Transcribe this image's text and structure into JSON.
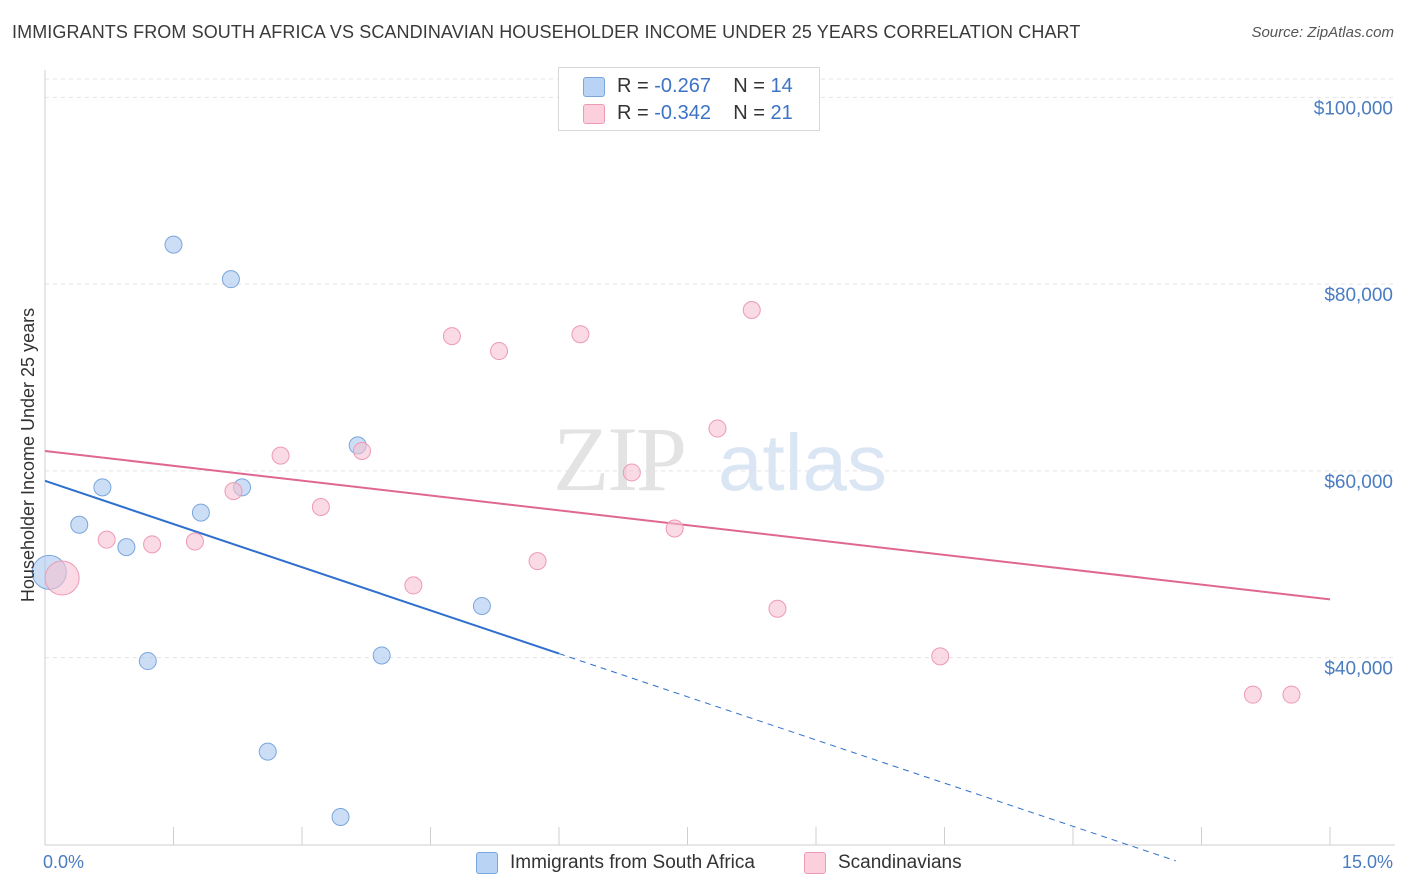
{
  "title": "IMMIGRANTS FROM SOUTH AFRICA VS SCANDINAVIAN HOUSEHOLDER INCOME UNDER 25 YEARS CORRELATION CHART",
  "source": "Source: ZipAtlas.com",
  "watermark": {
    "zip": "ZIP",
    "atlas": "atlas"
  },
  "legend": {
    "r_label": "R =",
    "n_label": "N =",
    "series1": {
      "r": "-0.267",
      "n": "14"
    },
    "series2": {
      "r": "-0.342",
      "n": "21"
    }
  },
  "chart_data": {
    "type": "scatter",
    "title": "IMMIGRANTS FROM SOUTH AFRICA VS SCANDINAVIAN HOUSEHOLDER INCOME UNDER 25 YEARS CORRELATION CHART",
    "xlabel": "",
    "ylabel": "Householder Income Under 25 years",
    "xlim": [
      0,
      15
    ],
    "ylim": [
      21000,
      104000
    ],
    "x_tick_labels": [
      "0.0%",
      "15.0%"
    ],
    "y_ticks": [
      40000,
      60000,
      80000,
      100000
    ],
    "y_tick_labels": [
      "$40,000",
      "$60,000",
      "$80,000",
      "$100,000"
    ],
    "grid": true,
    "legend_position": "top-center",
    "series": [
      {
        "name": "Immigrants from South Africa",
        "color": "#a9c8f0",
        "edge": "#7aa6dc",
        "line_color": "#2f6fce",
        "points": [
          {
            "x": 0.05,
            "y": 50200,
            "size": "large"
          },
          {
            "x": 0.4,
            "y": 55300
          },
          {
            "x": 0.67,
            "y": 59300
          },
          {
            "x": 0.95,
            "y": 52900
          },
          {
            "x": 1.2,
            "y": 40700
          },
          {
            "x": 1.5,
            "y": 85300
          },
          {
            "x": 1.82,
            "y": 56600
          },
          {
            "x": 2.17,
            "y": 81600
          },
          {
            "x": 2.3,
            "y": 59300
          },
          {
            "x": 2.6,
            "y": 31000
          },
          {
            "x": 3.45,
            "y": 24000
          },
          {
            "x": 3.65,
            "y": 63800
          },
          {
            "x": 3.93,
            "y": 41300
          },
          {
            "x": 5.1,
            "y": 46600
          }
        ],
        "trend": {
          "x0": 0,
          "y0": 60000,
          "x1": 6.0,
          "y1": 41500,
          "dash_to_x": 13.2
        }
      },
      {
        "name": "Scandinavians",
        "color": "#f7c2d2",
        "edge": "#ee9ab4",
        "line_color": "#e06890",
        "points": [
          {
            "x": 0.2,
            "y": 49600,
            "size": "large"
          },
          {
            "x": 0.72,
            "y": 53700
          },
          {
            "x": 1.25,
            "y": 53200
          },
          {
            "x": 1.75,
            "y": 53500
          },
          {
            "x": 2.2,
            "y": 58900
          },
          {
            "x": 2.75,
            "y": 62700
          },
          {
            "x": 3.22,
            "y": 57200
          },
          {
            "x": 3.7,
            "y": 63200
          },
          {
            "x": 4.3,
            "y": 48800
          },
          {
            "x": 4.75,
            "y": 75500
          },
          {
            "x": 5.3,
            "y": 73900
          },
          {
            "x": 5.75,
            "y": 51400
          },
          {
            "x": 6.25,
            "y": 75700
          },
          {
            "x": 6.85,
            "y": 60900
          },
          {
            "x": 7.35,
            "y": 54900
          },
          {
            "x": 7.85,
            "y": 65600
          },
          {
            "x": 8.25,
            "y": 78300
          },
          {
            "x": 8.55,
            "y": 46300
          },
          {
            "x": 10.45,
            "y": 41200
          },
          {
            "x": 14.1,
            "y": 37100
          },
          {
            "x": 14.55,
            "y": 37100
          }
        ],
        "trend": {
          "x0": 0,
          "y0": 63200,
          "x1": 15,
          "y1": 47300
        }
      }
    ]
  }
}
